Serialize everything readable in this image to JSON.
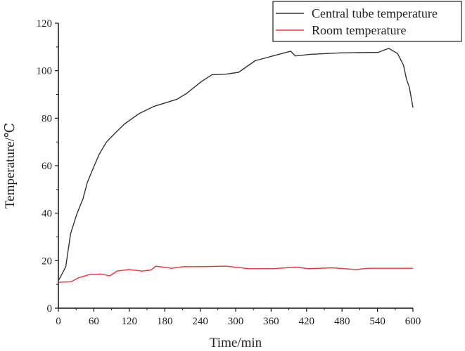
{
  "chart_data": {
    "type": "line",
    "title": "",
    "xlabel": "Time/min",
    "ylabel": "Temperature/℃",
    "xlim": [
      0,
      600
    ],
    "ylim": [
      0,
      120
    ],
    "xticks": [
      "0",
      "60",
      "120",
      "180",
      "240",
      "300",
      "360",
      "420",
      "480",
      "540",
      "600"
    ],
    "yticks": [
      "0",
      "20",
      "40",
      "60",
      "80",
      "100",
      "120"
    ],
    "grid": false,
    "legend_position": "top-right",
    "series": [
      {
        "name": "Central tube temperature",
        "color": "#333333",
        "x": [
          0,
          6.5,
          12.5,
          20.6,
          30.6,
          41.7,
          49,
          59,
          69,
          81,
          92,
          112,
          137,
          162,
          182,
          201,
          217,
          242,
          260,
          283,
          305,
          333,
          363,
          393,
          401,
          428,
          478,
          541,
          559,
          574,
          584,
          589,
          594,
          600
        ],
        "y": [
          11.6,
          14.6,
          17.5,
          31.3,
          39.2,
          46.1,
          53,
          59,
          64.8,
          69.8,
          72.7,
          77.6,
          82,
          85,
          86.5,
          88,
          90.4,
          95.4,
          98.3,
          98.5,
          99.3,
          104.2,
          106.2,
          108.2,
          106.2,
          106.9,
          107.5,
          107.7,
          109.4,
          107.2,
          102.3,
          96.4,
          92.9,
          84.5
        ]
      },
      {
        "name": "Room temperature",
        "color": "#e8333a",
        "x": [
          0,
          21.6,
          34,
          52,
          72,
          87,
          99,
          119,
          142,
          157,
          165,
          192,
          212,
          242,
          283,
          323,
          363,
          403,
          423,
          463,
          504,
          524,
          600
        ],
        "y": [
          10.9,
          11.1,
          12.8,
          14.1,
          14.4,
          13.6,
          15.6,
          16.3,
          15.6,
          16.1,
          17.7,
          16.8,
          17.5,
          17.5,
          17.7,
          16.6,
          16.6,
          17.3,
          16.6,
          17,
          16.3,
          16.8,
          16.8
        ]
      }
    ]
  }
}
